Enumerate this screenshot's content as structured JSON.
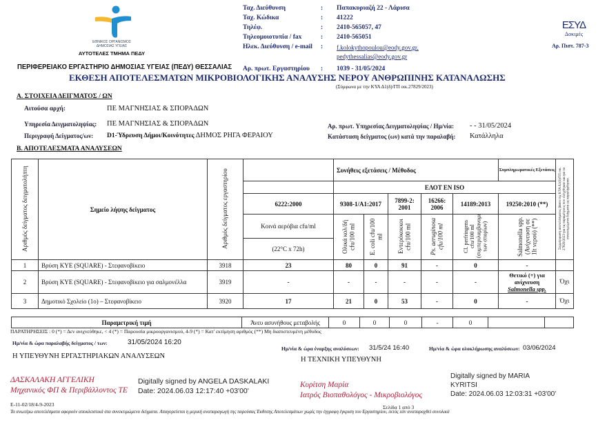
{
  "header": {
    "org_line1": "ΕΘΝΙΚΟΣ ΟΡΓΑΝΙΣΜΟΣ",
    "org_line2": "ΔΗΜΟΣΙΑΣ ΥΓΕΙΑΣ",
    "department": "ΑΥΤΟΤΕΛΕΣ ΤΜΗΜΑ ΠΕΔΥ",
    "lab_name": "ΠΕΡΙΦΕΡΕΙΑΚΟ ΕΡΓΑΣΤΗΡΙΟ ΔΗΜΟΣΙΑΣ ΥΓΕΙΑΣ (ΠΕΔΥ) ΘΕΣΣΑΛΙΑΣ",
    "contacts": [
      {
        "label": "Ταχ. Διεύθυνση",
        "value": "Παπακυριαζή 22 - Λάρισα"
      },
      {
        "label": "Ταχ. Κώδικα",
        "value": "41222"
      },
      {
        "label": "Τηλέφ.",
        "value": "2410-565057, 47"
      },
      {
        "label": "Τηλεομοιοτυπία / fax",
        "value": "2410-565051"
      },
      {
        "label": "Ηλεκ. Διεύθυνση / e-mail",
        "value": "f.kolokythopoulou@eody.gov.gr,",
        "value2": "pedythessalias@eody.gov.gr"
      }
    ],
    "protocol_label": "Αρ. πρωτ. Εργαστηρίου",
    "protocol_value": "1039 - 31/05/2024",
    "colon": ":",
    "esyd_logo": "ESYD",
    "esyd_sub": "Δοκιμές",
    "accreditation": "Αρ. Πιστ. 787-3"
  },
  "title": "ΕΚΘΕΣΗ ΑΠΟΤΕΛΕΣΜΑΤΩΝ ΜΙΚΡΟΒΙΟΛΟΓΙΚΗΣ ΑΝΑΛΥΣΗΣ ΝΕΡΟΥ ΑΝΘΡΩΠΙΝΗΣ ΚΑΤΑΝΑΛΩΣΗΣ",
  "subtitle": "(Σύμφωνα με την ΚΥΑ Δ1(δ)/ΓΠ οικ.27829/2023)",
  "section_a": {
    "heading": "Α. ΣΤΟΙΧΕΙΑ ΔΕΙΓΜΑΤΟΣ / ΩΝ",
    "requesting_label": "Αιτούσα αρχή:",
    "requesting_value": "ΠΕ ΜΑΓΝΗΣΙΑΣ & ΣΠΟΡΑΔΩΝ",
    "sampling_label": "Υπηρεσία Δειγματοληψίας:",
    "sampling_value": "ΠΕ ΜΑΓΝΗΣΙΑΣ & ΣΠΟΡΑΔΩΝ",
    "desc_label": "Περιγραφή Δείγματος/ων:",
    "desc_value_bold": "D1-Ύδρευση Δήμοι/Κοινότητες",
    "desc_value": "ΔΗΜΟΣ ΡΗΓΑ ΦΕΡΑΙΟΥ",
    "service_protocol_label": "Αρ. πρωτ. Υπηρεσίας Δειγματοληψίας / Ημ/νία:",
    "service_protocol_value": "- - 31/05/2024",
    "condition_label": "Κατάσταση δείγματος (ων) κατά την παραλαβή:",
    "condition_value": "Κατάλληλα"
  },
  "section_b": {
    "heading": "Β. ΑΠΟΤΕΛΕΣΜΑΤΑ ΑΝΑΛΥΣΕΩΝ",
    "col_sample_no": "Αριθμός δείγματος δειγματολήπτη",
    "col_point": "Σημείο λήψης δείγματος",
    "col_lab_no": "Αριθμός δείγματος εργαστηρίου",
    "usual_tests": "Συνήθεις εξετάσεις / Μέθοδος",
    "supplementary": "Συμπληρωματικές Εξετάσεις",
    "standard": "ΕΛΟΤ ΕΝ ISO",
    "compliance": "Συμμόρφωση αποτελέσματος βάσει της ΚΥΑ Δ1(δ)/ΓΠ οικ. 27829/2023 για τις παραμέτρους που ελέγχθηκαν και για τα συνεκτιμώμενα δείγματα ως παραλήφθησαν.",
    "methods": [
      "6222:2000",
      "9308-1/A1:2017",
      "7899-2: 2001",
      "16266: 2006",
      "14189:2013",
      "19250:2010 (**)"
    ],
    "aerobic_label": "Κοινά αερόβια cfu/ml",
    "aerobic_cond": "(22°C x 72h)",
    "params": [
      "Ολικά κολ/δή cfu/100 ml",
      "E. coli cfu/100 ml",
      "Εντερόκοκκοι cfu/100 ml",
      "Ps. aeruginosa cfu/100 ml",
      "Cl. perfringens cfu/100 ml (συμπεριλαμβανομένων των σπορίων)",
      "Salmonella spp. (Ανίχνευση σε 1lt νερού) (**)"
    ],
    "rows": [
      {
        "no": "1",
        "point": "Βρύση ΚΥΕ (SQUARE) - Στεφανοβίκειο",
        "lab": "3918",
        "vals": [
          "23",
          "80",
          "0",
          "91",
          "-",
          "0",
          "-"
        ],
        "compliance": ""
      },
      {
        "no": "2",
        "point": "Βρύση ΚΥΕ (SQUARE) - Στεφανοβίκειο για σαλμονέλλα",
        "lab": "3919",
        "vals": [
          "-",
          "-",
          "-",
          "-",
          "-",
          "-",
          "Θετικό (+) για ανίχνευση"
        ],
        "salmonella_extra": "Salmonella spp.",
        "compliance": "Όχι"
      },
      {
        "no": "3",
        "point": "Δημοτικό Σχολείο (1ο) – Στεφανοβίκειο",
        "lab": "3920",
        "vals": [
          "17",
          "21",
          "0",
          "53",
          "-",
          "0",
          "-"
        ],
        "compliance": "Όχι"
      }
    ],
    "param_value_label": "Παραμετρική τιμή",
    "param_values": [
      "Άνευ ασυνήθους μεταβολής",
      "0",
      "0",
      "0",
      "-",
      "0",
      "",
      ""
    ]
  },
  "notes": "ΠΑΡΑΤΗΡΗΣΕΙΣ : 0 (*) = Δεν ανιχνεύθηκε, < 4 (*) = Παρουσία μικροοργανισμού, 4-9 (*) = Κατ' εκτίμηση αριθμός (**) Μη διαπιστευμένη μέθοδος",
  "receipt_label": "Ημ/νία & ώρα παραλαβής δείγματος / των:",
  "receipt_value": "31/05/2024 16:20",
  "start_label": "Ημ/νία & ώρα έναρξης αναλύσεων:",
  "start_value": "31/5/24 16:40",
  "end_label": "Ημ/νία & ώρα ολοκλήρωσης αναλύσεων:",
  "end_value": "03/06/2024",
  "responsible_lab": "Η ΥΠΕΥΘΥΝΗ ΕΡΓΑΣΤΗΡΙΑΚΩΝ ΑΝΑΛΥΣΕΩΝ",
  "responsible_tech": "Η ΤΕΧΝΙΚΗ ΥΠΕΥΘΥΝΗ",
  "signer1": {
    "name": "ΔΑΣΚΑΛΑΚΗ ΑΓΓΕΛΙΚΗ",
    "role": "Μηχανικός ΦΠ & Περιβάλλοντος ΤΕ",
    "digital1": "Digitally signed by ANGELA DASKALAKI",
    "digital2": "Date: 2024.06.03 12:17:40 +03'00'"
  },
  "signer2": {
    "name": "Κυρίτση Μαρία",
    "role": "Ιατρός Βιοπαθολόγος - Μικροβιολόγος",
    "digital1": "Digitally signed by MARIA",
    "digital1b": "KYRITSI",
    "digital2": "Date: 2024.06.03 12:03:31 +03'00'"
  },
  "doc_code": "Ε-11-02/18/4-9-2023",
  "page": "Σελίδα 1 από 3",
  "disclaimer": "Τα ανωτέρω αποτελέσματα αφορούν αποκλειστικά στα συνεκτιμώμενα δείγματα. Απαγορεύεται η μερική αναπαραγωγή της παρούσας Έκθεσης Αποτελεσμάτων χωρίς την έγγραφη έγκριση του Εργαστηρίου, εκτός εάν αναπαραχθεί συνολικά",
  "colors": {
    "logo_blue": "#1f8fd0",
    "logo_yellow": "#f5b82e",
    "label_navy": "#1d2a6e",
    "signature_red": "#b0203a"
  }
}
